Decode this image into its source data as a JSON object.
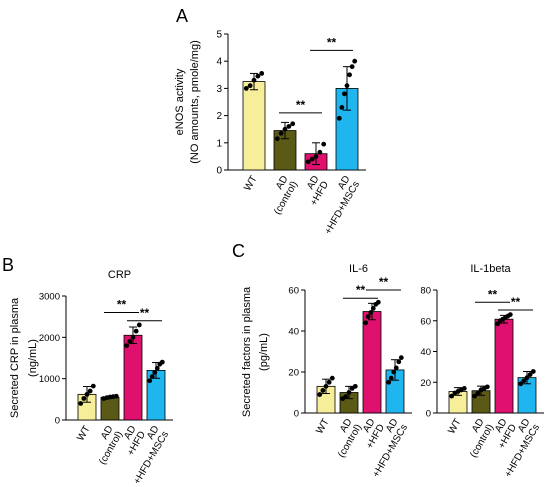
{
  "panels": {
    "A": {
      "letter": "A"
    },
    "B": {
      "letter": "B"
    },
    "C": {
      "letter": "C"
    }
  },
  "colors": {
    "WT": "#f7ee9a",
    "AD_control": "#5a5a16",
    "AD_HFD": "#e0106e",
    "AD_HFD_MSCs": "#1fb6f0"
  },
  "chart_data": [
    {
      "id": "enos",
      "type": "bar",
      "title": "",
      "ylabel_line1": "eNOS activity",
      "ylabel_line2": "(NO amounts, pmole/mg)",
      "categories": [
        "WT",
        "AD (control)",
        "AD +HFD",
        "AD +HFD+MSCs"
      ],
      "category_lines": [
        [
          "WT"
        ],
        [
          "AD",
          "(control)"
        ],
        [
          "AD",
          "+HFD"
        ],
        [
          "AD",
          "+HFD+MSCs"
        ]
      ],
      "values": [
        3.25,
        1.45,
        0.6,
        3.0
      ],
      "errors": [
        0.3,
        0.3,
        0.4,
        0.8
      ],
      "points": [
        [
          3.0,
          3.1,
          3.3,
          3.45,
          3.55
        ],
        [
          1.15,
          1.35,
          1.5,
          1.6,
          1.7
        ],
        [
          0.3,
          0.4,
          0.5,
          0.65,
          0.95
        ],
        [
          1.9,
          2.3,
          2.8,
          3.1,
          3.5,
          3.8,
          4.0
        ]
      ],
      "ylim": [
        0,
        5
      ],
      "yticks": [
        0,
        1,
        2,
        3,
        4,
        5
      ],
      "significance": [
        {
          "from": 1,
          "to": 2,
          "y": 2.1,
          "label": "**"
        },
        {
          "from": 2,
          "to": 3,
          "y": 4.4,
          "label": "**"
        }
      ]
    },
    {
      "id": "crp",
      "type": "bar",
      "title": "CRP",
      "ylabel_line1": "Secreted CRP in plasma",
      "ylabel_line2": "(ng/mL)",
      "categories": [
        "WT",
        "AD (control)",
        "AD +HFD",
        "AD +HFD+MSCs"
      ],
      "category_lines": [
        [
          "WT"
        ],
        [
          "AD",
          "(control)"
        ],
        [
          "AD",
          "+HFD"
        ],
        [
          "AD",
          "+HFD+MSCs"
        ]
      ],
      "values": [
        620,
        550,
        2050,
        1200
      ],
      "errors": [
        190,
        30,
        200,
        190
      ],
      "points": [
        [
          400,
          520,
          620,
          700,
          820
        ],
        [
          520,
          540,
          555,
          565,
          575
        ],
        [
          1800,
          1900,
          2000,
          2150,
          2300
        ],
        [
          950,
          1050,
          1150,
          1250,
          1350,
          1400
        ]
      ],
      "ylim": [
        0,
        3000
      ],
      "yticks": [
        0,
        1000,
        2000,
        3000
      ],
      "significance": [
        {
          "from": 1,
          "to": 2,
          "y": 2600,
          "label": "**"
        },
        {
          "from": 2,
          "to": 3,
          "y": 2400,
          "label": "**"
        }
      ]
    },
    {
      "id": "il6",
      "type": "bar",
      "title": "IL-6",
      "ylabel_line1": "Secreted factors in plasma",
      "ylabel_line2": "(pg/mL)",
      "categories": [
        "WT",
        "AD (control)",
        "AD +HFD",
        "AD +HFD+MSCs"
      ],
      "category_lines": [
        [
          "WT"
        ],
        [
          "AD",
          "(control)"
        ],
        [
          "AD",
          "+HFD"
        ],
        [
          "AD",
          "+HFD+MSCs"
        ]
      ],
      "values": [
        13,
        10,
        49.5,
        21
      ],
      "errors": [
        3.5,
        3,
        4,
        5
      ],
      "points": [
        [
          9,
          11,
          13,
          15,
          17
        ],
        [
          7,
          8,
          10,
          12,
          13
        ],
        [
          44,
          47,
          49,
          51,
          53,
          54
        ],
        [
          15,
          17,
          20,
          22,
          25,
          27
        ]
      ],
      "ylim": [
        0,
        60
      ],
      "yticks": [
        0,
        20,
        40,
        60
      ],
      "significance": [
        {
          "from": 1,
          "to": 2,
          "y": 56,
          "label": "**"
        },
        {
          "from": 2,
          "to": 3,
          "y": 60,
          "label": "**"
        }
      ]
    },
    {
      "id": "il1b",
      "type": "bar",
      "title": "IL-1beta",
      "ylabel_line1": "",
      "ylabel_line2": "",
      "categories": [
        "WT",
        "AD (control)",
        "AD +HFD",
        "AD +HFD+MSCs"
      ],
      "category_lines": [
        [
          "WT"
        ],
        [
          "AD",
          "(control)"
        ],
        [
          "AD",
          "+HFD"
        ],
        [
          "AD",
          "+HFD+MSCs"
        ]
      ],
      "values": [
        14,
        14.5,
        61,
        23
      ],
      "errors": [
        2.5,
        3,
        2.5,
        4
      ],
      "points": [
        [
          11,
          13,
          14,
          15,
          16
        ],
        [
          11,
          13,
          15,
          16,
          17
        ],
        [
          58,
          60,
          61,
          62,
          63,
          64
        ],
        [
          19,
          21,
          23,
          25,
          27
        ]
      ],
      "ylim": [
        0,
        80
      ],
      "yticks": [
        0,
        20,
        40,
        60,
        80
      ],
      "significance": [
        {
          "from": 1,
          "to": 2,
          "y": 72,
          "label": "**"
        },
        {
          "from": 2,
          "to": 3,
          "y": 67,
          "label": "**"
        }
      ]
    }
  ]
}
